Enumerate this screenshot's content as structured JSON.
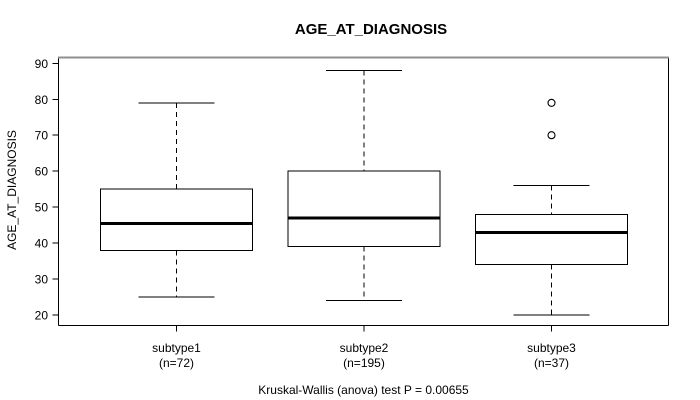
{
  "figure": {
    "title": "AGE_AT_DIAGNOSIS",
    "caption": "Kruskal-Wallis (anova) test P = 0.00655"
  },
  "chart_data": {
    "type": "boxplot",
    "title": "AGE_AT_DIAGNOSIS",
    "ylabel": "AGE_AT_DIAGNOSIS",
    "xlabel": "",
    "ylim": [
      17,
      92
    ],
    "yticks": [
      20,
      30,
      40,
      50,
      60,
      70,
      80,
      90
    ],
    "grid": false,
    "legend": "none",
    "categories": [
      "subtype1",
      "subtype2",
      "subtype3"
    ],
    "counts": [
      "(n=72)",
      "(n=195)",
      "(n=37)"
    ],
    "caption": "Kruskal-Wallis (anova) test P = 0.00655",
    "series": [
      {
        "name": "subtype1",
        "n": 72,
        "whisker_low": 25,
        "q1": 38,
        "median": 45.5,
        "q3": 55,
        "whisker_high": 79,
        "outliers": []
      },
      {
        "name": "subtype2",
        "n": 195,
        "whisker_low": 24,
        "q1": 39,
        "median": 47,
        "q3": 60,
        "whisker_high": 88,
        "outliers": []
      },
      {
        "name": "subtype3",
        "n": 37,
        "whisker_low": 20,
        "q1": 34,
        "median": 43,
        "q3": 48,
        "whisker_high": 56,
        "outliers": [
          70,
          79
        ]
      }
    ],
    "colors": {
      "box_fill": "#ffffff",
      "line": "#000000",
      "frame_top": "#8f8f8f"
    }
  }
}
